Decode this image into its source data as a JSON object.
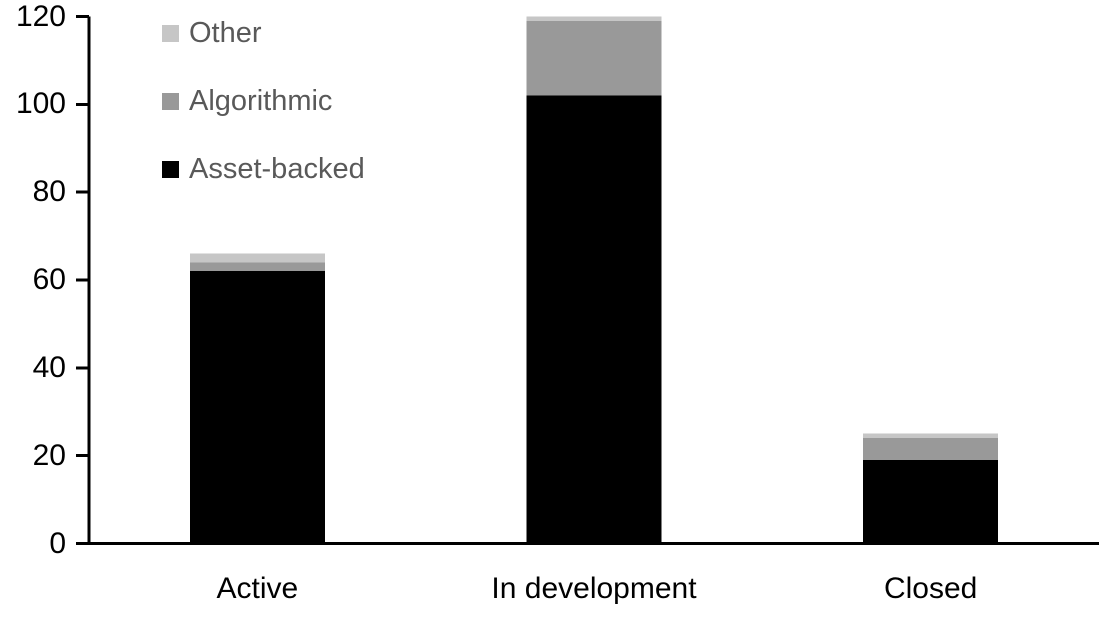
{
  "accent_colors": {
    "asset_backed": "#000000",
    "algorithmic": "#999999",
    "other": "#c6c6c6",
    "legend_text": "#595959",
    "axis": "#000000"
  },
  "chart_data": {
    "type": "bar",
    "stacked": true,
    "title": "",
    "xlabel": "",
    "ylabel": "",
    "categories": [
      "Active",
      "In development",
      "Closed"
    ],
    "series": [
      {
        "name": "Asset-backed",
        "color": "#000000",
        "values": [
          62,
          102,
          19
        ]
      },
      {
        "name": "Algorithmic",
        "color": "#999999",
        "values": [
          2,
          17,
          5
        ]
      },
      {
        "name": "Other",
        "color": "#c6c6c6",
        "values": [
          2,
          1,
          1
        ]
      }
    ],
    "totals": [
      66,
      120,
      25
    ],
    "ylim": [
      0,
      120
    ],
    "y_ticks": [
      0,
      20,
      40,
      60,
      80,
      100,
      120
    ],
    "grid": false,
    "legend_position": "top-left",
    "legend_order": [
      "Other",
      "Algorithmic",
      "Asset-backed"
    ]
  }
}
